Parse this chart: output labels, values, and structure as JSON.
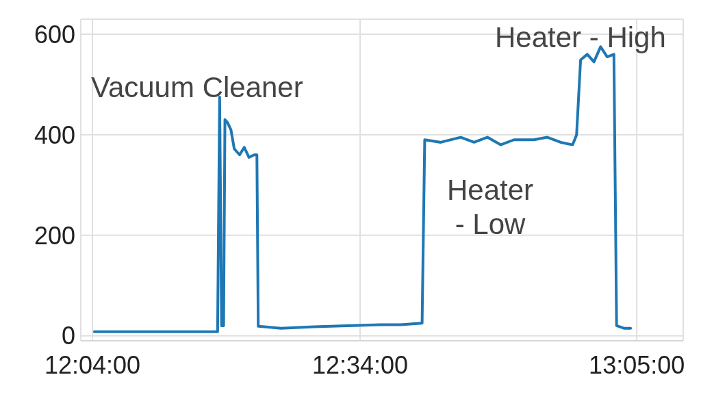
{
  "chart_data": {
    "type": "line",
    "x": [
      12.0704,
      12.3005,
      12.3043,
      12.308,
      12.3117,
      12.3142,
      12.3192,
      12.3254,
      12.3316,
      12.3416,
      12.3503,
      12.359,
      12.3689,
      12.3739,
      12.3764,
      12.3876,
      12.4187,
      12.4809,
      12.5431,
      12.6053,
      12.6426,
      12.6824,
      12.6873,
      12.7172,
      12.7545,
      12.7794,
      12.8043,
      12.8291,
      12.854,
      12.8913,
      12.9162,
      12.9411,
      12.9635,
      12.9709,
      12.9784,
      12.9908,
      13.0033,
      13.0157,
      13.0281,
      13.0406,
      13.0456,
      13.0592,
      13.0717
    ],
    "series": [
      {
        "color": "#1f77b4",
        "values": [
          8,
          8,
          475,
          20,
          20,
          430,
          424,
          410,
          372,
          360,
          375,
          355,
          360,
          360,
          19,
          18,
          15,
          18,
          20,
          22,
          22,
          25,
          390,
          385,
          395,
          385,
          395,
          380,
          390,
          390,
          395,
          385,
          380,
          400,
          549,
          560,
          545,
          575,
          555,
          560,
          20,
          15,
          15
        ]
      }
    ],
    "xlim": [
      12.045,
      13.17
    ],
    "xticks": [
      {
        "value": 12.0667,
        "label": "12:04:00"
      },
      {
        "value": 12.5667,
        "label": "12:34:00"
      },
      {
        "value": 13.0833,
        "label": "13:05:00"
      }
    ],
    "ylim": [
      -10,
      630
    ],
    "yticks": [
      0,
      200,
      400,
      600
    ],
    "grid": true,
    "marker": "none",
    "line_style": "solid",
    "annotations": [
      "Vacuum Cleaner",
      "Heater\n - Low",
      "Heater - High"
    ]
  }
}
